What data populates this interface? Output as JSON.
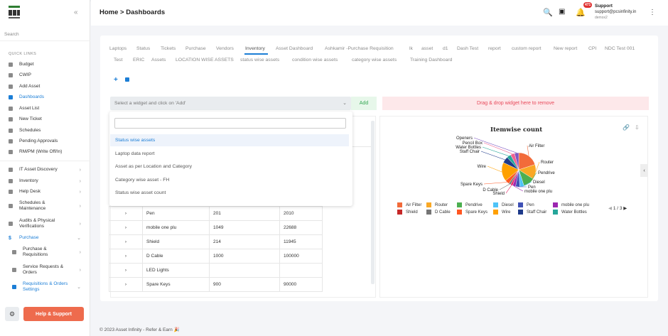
{
  "sidebar": {
    "search_placeholder": "Search",
    "quick_links_label": "QUICK LINKS",
    "items": [
      {
        "label": "Budget",
        "icon": "budget-icon"
      },
      {
        "label": "CWIP",
        "icon": "wrench-icon"
      },
      {
        "label": "Add Asset",
        "icon": "plus-icon"
      },
      {
        "label": "Dashboards",
        "icon": "dashboard-icon"
      },
      {
        "label": "Asset List",
        "icon": "list-icon"
      },
      {
        "label": "New Ticket",
        "icon": "ticket-icon"
      },
      {
        "label": "Schedules",
        "icon": "calendar-icon"
      },
      {
        "label": "Pending Approvals",
        "icon": "approval-icon"
      },
      {
        "label": "RM/PM (Write Off/In)",
        "icon": "writeoff-icon"
      }
    ],
    "modules": [
      {
        "label": "IT Asset Discovery",
        "icon": "monitor-icon"
      },
      {
        "label": "Inventory",
        "icon": "box-icon"
      },
      {
        "label": "Help Desk",
        "icon": "help-icon"
      },
      {
        "label": "Schedules &\nMaintenance",
        "icon": "maintenance-icon"
      },
      {
        "label": "Audits & Physical\nVerifications",
        "icon": "audit-icon"
      },
      {
        "label": "Purchase",
        "icon": "dollar-icon"
      },
      {
        "label": "Purchase &\nRequisitions",
        "icon": "cart-icon"
      },
      {
        "label": "Service Requests &\nOrders",
        "icon": "gears-icon"
      },
      {
        "label": "Requisitions & Orders\nSettings",
        "icon": "cart-icon"
      }
    ],
    "help_label": "Help & Support"
  },
  "header": {
    "breadcrumb": "Home > Dashboards",
    "badge": "471",
    "support_title": "Support",
    "support_email": "support@pcsinfinity.in",
    "support_user": "demox2"
  },
  "tabs_row1": [
    "Laptops",
    "Status",
    "Tickets",
    "Purchase",
    "Vendors",
    "Inventory",
    "Asset Dashboard",
    "Ashkamir -Purchase Requisition",
    "lk",
    "asset",
    "d1",
    "Dash Test",
    "report",
    "custom report",
    "New report",
    "CPI",
    "NDC Test 001"
  ],
  "tabs_row2": [
    "Test",
    "ERIC",
    "Assets",
    "LOCATION WISE ASSETS",
    "status wise assets",
    "condition wise assets",
    "category wise assets",
    "Training Dashboard"
  ],
  "widget_select": {
    "placeholder": "Select a widget and click on 'Add'",
    "add_label": "Add",
    "drop_label": "Drag & drop widget here to remove"
  },
  "dropdown_options": [
    "Status wise assets",
    "Laptop data report",
    "Asset as per Location and Category",
    "Category wise asset - FH",
    "Status wise asset count"
  ],
  "table_rows": [
    {
      "name": "Pen",
      "a": "201",
      "b": "2010"
    },
    {
      "name": "mobile one plu",
      "a": "1049",
      "b": "22688"
    },
    {
      "name": "Shield",
      "a": "214",
      "b": "11945"
    },
    {
      "name": "D Cable",
      "a": "1000",
      "b": "100000"
    },
    {
      "name": "LED Lights",
      "a": "",
      "b": ""
    },
    {
      "name": "Spare Keys",
      "a": "900",
      "b": "90000"
    }
  ],
  "chart_data": {
    "type": "pie",
    "title": "Itemwise count",
    "slice_labels": [
      "Air Filter",
      "Router",
      "Pendrive",
      "Diesel",
      "Pen",
      "mobile one plu",
      "Shield",
      "D Cable",
      "Spare Keys",
      "Wire",
      "Staff Chair",
      "Water Bottles",
      "Pencil Box",
      "Bottle Openers"
    ],
    "series": [
      {
        "values": [
          20,
          14,
          11,
          4,
          4,
          3,
          2,
          2,
          4,
          18,
          6,
          4,
          4,
          4
        ]
      }
    ],
    "colors": [
      "#f26b3a",
      "#f9a825",
      "#4caf50",
      "#4fc3f7",
      "#3f51b5",
      "#9c27b0",
      "#e91e63",
      "#757575",
      "#ff5722",
      "#ffa000",
      "#1e3a8a",
      "#26a69a",
      "#f06292",
      "#7e57c2"
    ],
    "legend": [
      {
        "name": "Air Filter",
        "color": "#f26b3a"
      },
      {
        "name": "Router",
        "color": "#f9a825"
      },
      {
        "name": "Pendrive",
        "color": "#4caf50"
      },
      {
        "name": "Diesel",
        "color": "#4fc3f7"
      },
      {
        "name": "Pen",
        "color": "#3f51b5"
      },
      {
        "name": "mobile one plu",
        "color": "#9c27b0"
      },
      {
        "name": "Shield",
        "color": "#c62828"
      },
      {
        "name": "D Cable",
        "color": "#757575"
      },
      {
        "name": "Spare Keys",
        "color": "#ff5722"
      },
      {
        "name": "Wire",
        "color": "#ffa000"
      },
      {
        "name": "Staff Chair",
        "color": "#1e3a8a"
      },
      {
        "name": "Water Bottles",
        "color": "#26a69a"
      }
    ],
    "legend_pager": "1 / 3",
    "legend_placement": "bottom"
  },
  "footer": "© 2023 Asset Infinity - Refer & Earn 🎉"
}
